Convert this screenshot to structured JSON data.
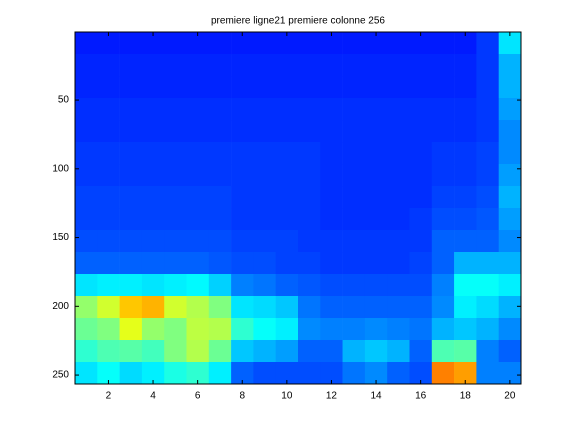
{
  "chart_data": {
    "type": "heatmap",
    "title": "premiere ligne21 premiere colonne 256",
    "x": [
      1,
      2,
      3,
      4,
      5,
      6,
      7,
      8,
      9,
      10,
      11,
      12,
      13,
      14,
      15,
      16,
      17,
      18,
      19,
      20
    ],
    "y_edges": [
      0.5,
      16.5,
      32.5,
      48.5,
      64.5,
      80.5,
      96.5,
      112.5,
      128.5,
      144.5,
      160.5,
      176.5,
      192.5,
      208.5,
      224.5,
      240.5,
      256.5
    ],
    "z": [
      [
        0.15,
        0.15,
        0.15,
        0.15,
        0.15,
        0.15,
        0.15,
        0.15,
        0.15,
        0.15,
        0.15,
        0.15,
        0.15,
        0.15,
        0.15,
        0.15,
        0.15,
        0.15,
        0.18,
        0.35
      ],
      [
        0.16,
        0.16,
        0.16,
        0.16,
        0.16,
        0.16,
        0.16,
        0.16,
        0.16,
        0.16,
        0.16,
        0.16,
        0.16,
        0.16,
        0.16,
        0.16,
        0.16,
        0.16,
        0.18,
        0.3
      ],
      [
        0.16,
        0.16,
        0.16,
        0.16,
        0.16,
        0.16,
        0.16,
        0.16,
        0.16,
        0.16,
        0.16,
        0.16,
        0.16,
        0.16,
        0.16,
        0.16,
        0.16,
        0.16,
        0.18,
        0.3
      ],
      [
        0.17,
        0.17,
        0.17,
        0.17,
        0.17,
        0.17,
        0.17,
        0.17,
        0.17,
        0.17,
        0.17,
        0.17,
        0.17,
        0.17,
        0.17,
        0.17,
        0.17,
        0.17,
        0.18,
        0.28
      ],
      [
        0.17,
        0.17,
        0.17,
        0.17,
        0.17,
        0.17,
        0.17,
        0.17,
        0.17,
        0.17,
        0.17,
        0.17,
        0.17,
        0.17,
        0.17,
        0.17,
        0.17,
        0.17,
        0.18,
        0.26
      ],
      [
        0.18,
        0.18,
        0.18,
        0.18,
        0.18,
        0.18,
        0.18,
        0.18,
        0.18,
        0.18,
        0.18,
        0.17,
        0.17,
        0.17,
        0.17,
        0.17,
        0.18,
        0.18,
        0.19,
        0.26
      ],
      [
        0.18,
        0.18,
        0.18,
        0.18,
        0.18,
        0.18,
        0.18,
        0.18,
        0.18,
        0.18,
        0.18,
        0.17,
        0.17,
        0.17,
        0.17,
        0.17,
        0.18,
        0.18,
        0.19,
        0.28
      ],
      [
        0.19,
        0.19,
        0.19,
        0.19,
        0.19,
        0.19,
        0.19,
        0.18,
        0.18,
        0.18,
        0.18,
        0.17,
        0.17,
        0.17,
        0.17,
        0.17,
        0.19,
        0.19,
        0.2,
        0.3
      ],
      [
        0.19,
        0.19,
        0.19,
        0.19,
        0.19,
        0.19,
        0.19,
        0.18,
        0.18,
        0.18,
        0.18,
        0.17,
        0.17,
        0.17,
        0.17,
        0.18,
        0.2,
        0.2,
        0.21,
        0.28
      ],
      [
        0.2,
        0.2,
        0.2,
        0.2,
        0.2,
        0.2,
        0.2,
        0.19,
        0.19,
        0.19,
        0.18,
        0.18,
        0.18,
        0.18,
        0.18,
        0.18,
        0.22,
        0.22,
        0.22,
        0.26
      ],
      [
        0.22,
        0.22,
        0.22,
        0.22,
        0.22,
        0.22,
        0.21,
        0.2,
        0.2,
        0.19,
        0.19,
        0.18,
        0.18,
        0.18,
        0.18,
        0.19,
        0.22,
        0.3,
        0.3,
        0.3
      ],
      [
        0.35,
        0.36,
        0.36,
        0.35,
        0.36,
        0.37,
        0.33,
        0.25,
        0.24,
        0.22,
        0.21,
        0.2,
        0.2,
        0.2,
        0.2,
        0.2,
        0.25,
        0.38,
        0.38,
        0.36
      ],
      [
        0.52,
        0.58,
        0.68,
        0.7,
        0.58,
        0.55,
        0.5,
        0.35,
        0.34,
        0.32,
        0.24,
        0.22,
        0.22,
        0.22,
        0.22,
        0.22,
        0.26,
        0.36,
        0.34,
        0.3
      ],
      [
        0.48,
        0.5,
        0.6,
        0.52,
        0.5,
        0.56,
        0.55,
        0.42,
        0.38,
        0.36,
        0.26,
        0.25,
        0.25,
        0.26,
        0.25,
        0.24,
        0.3,
        0.32,
        0.3,
        0.26
      ],
      [
        0.42,
        0.45,
        0.46,
        0.44,
        0.5,
        0.55,
        0.48,
        0.32,
        0.3,
        0.28,
        0.22,
        0.22,
        0.3,
        0.32,
        0.3,
        0.22,
        0.45,
        0.46,
        0.25,
        0.22
      ],
      [
        0.35,
        0.38,
        0.34,
        0.36,
        0.4,
        0.42,
        0.36,
        0.22,
        0.2,
        0.2,
        0.2,
        0.2,
        0.24,
        0.26,
        0.22,
        0.2,
        0.75,
        0.72,
        0.25,
        0.25
      ]
    ],
    "clim": [
      0,
      1
    ],
    "xlim": [
      0.5,
      20.5
    ],
    "xticks": [
      2,
      4,
      6,
      8,
      10,
      12,
      14,
      16,
      18,
      20
    ],
    "ylim": [
      0.5,
      256.5
    ],
    "yticks": [
      50,
      100,
      150,
      200,
      250
    ],
    "y_reversed": true,
    "colormap": "jet"
  }
}
